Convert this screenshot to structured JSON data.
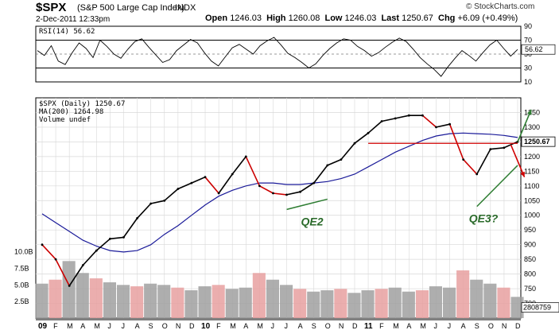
{
  "header": {
    "symbol": "$SPX",
    "description": "(S&P 500 Large Cap Index)",
    "exchange": "INDX",
    "datetime": "2-Dec-2011 12:33pm",
    "credit": "© StockCharts.com",
    "quote": {
      "open_label": "Open",
      "open": "1246.03",
      "high_label": "High",
      "high": "1260.08",
      "low_label": "Low",
      "low": "1246.03",
      "last_label": "Last",
      "last": "1250.67",
      "chg_label": "Chg",
      "chg": "+6.09 (+0.49%)"
    }
  },
  "colors": {
    "price": "#000000",
    "price_down": "#cc0000",
    "ma": "#1a1a99",
    "resistance": "#d00000",
    "trend": "#2e7d32",
    "volume_up": "#a0a0a0",
    "volume_down": "#e8a0a0",
    "grid": "#d8d8d8",
    "overbought_band": "#000000"
  },
  "chart_data": [
    {
      "type": "line",
      "name": "rsi-panel",
      "title": "RSI(14) 56.62",
      "indicator": "RSI(14)",
      "current": 56.62,
      "current_label": "56.62",
      "ylim": [
        10,
        90
      ],
      "yticks": [
        90,
        70,
        50,
        30,
        10
      ],
      "ytick_labels": [
        "90",
        "70",
        "50",
        "30",
        "10"
      ],
      "reference_lines": [
        70,
        30
      ],
      "values": [
        55,
        48,
        62,
        40,
        35,
        52,
        66,
        58,
        45,
        70,
        61,
        50,
        44,
        57,
        68,
        72,
        60,
        49,
        38,
        42,
        55,
        63,
        71,
        66,
        52,
        40,
        33,
        46,
        59,
        64,
        57,
        50,
        62,
        69,
        74,
        63,
        51,
        45,
        38,
        30,
        36,
        48,
        58,
        66,
        72,
        70,
        61,
        55,
        47,
        52,
        60,
        67,
        73,
        68,
        57,
        45,
        36,
        28,
        18,
        32,
        44,
        55,
        48,
        40,
        52,
        63,
        70,
        58,
        47,
        56.62
      ]
    },
    {
      "type": "line",
      "name": "price-panel",
      "title": "$SPX (Daily) 1250.67",
      "legend": [
        "$SPX (Daily) 1250.67",
        "MA(200) 1264.98",
        "Volume undef"
      ],
      "ylim": [
        650,
        1400
      ],
      "yticks": [
        1350,
        1300,
        1250,
        1200,
        1150,
        1100,
        1050,
        1000,
        950,
        900,
        850,
        800,
        750,
        700
      ],
      "ytick_labels": [
        "1350",
        "1300",
        "1250",
        "1200",
        "1150",
        "1100",
        "1050",
        "1000",
        "950",
        "900",
        "850",
        "800",
        "750",
        "700"
      ],
      "last_label": "1250.67",
      "x": [
        "09",
        "F",
        "M",
        "A",
        "M",
        "J",
        "J",
        "A",
        "S",
        "O",
        "N",
        "D",
        "10",
        "F",
        "M",
        "A",
        "M",
        "J",
        "J",
        "A",
        "S",
        "O",
        "N",
        "D",
        "11",
        "F",
        "M",
        "A",
        "M",
        "J",
        "J",
        "A",
        "S",
        "O",
        "N",
        "D"
      ],
      "series": [
        {
          "name": "$SPX",
          "values": [
            900,
            850,
            760,
            830,
            880,
            920,
            925,
            990,
            1040,
            1050,
            1090,
            1110,
            1130,
            1075,
            1140,
            1200,
            1100,
            1075,
            1070,
            1080,
            1110,
            1170,
            1190,
            1245,
            1280,
            1320,
            1330,
            1340,
            1340,
            1300,
            1310,
            1190,
            1140,
            1225,
            1230,
            1250.67
          ]
        },
        {
          "name": "MA(200)",
          "values": [
            1005,
            975,
            945,
            915,
            895,
            880,
            875,
            880,
            900,
            935,
            965,
            1000,
            1035,
            1065,
            1085,
            1100,
            1110,
            1110,
            1105,
            1105,
            1110,
            1115,
            1125,
            1140,
            1165,
            1190,
            1215,
            1235,
            1255,
            1270,
            1278,
            1280,
            1278,
            1276,
            1272,
            1264.98
          ]
        }
      ],
      "annotations": [
        {
          "label": "QE2",
          "type": "trend-line",
          "start": [
            18,
            1020
          ],
          "end": [
            21,
            1055
          ]
        },
        {
          "label": "QE3?",
          "type": "trend-line",
          "start": [
            32,
            1030
          ],
          "end": [
            35,
            1170
          ]
        },
        {
          "label": "",
          "type": "resistance-line",
          "start": [
            24,
            1245
          ],
          "end": [
            35,
            1245
          ]
        },
        {
          "label": "",
          "type": "arrow-up",
          "start": [
            35,
            1250
          ],
          "end": [
            36,
            1360
          ]
        },
        {
          "label": "",
          "type": "arrow-down",
          "start": [
            34.5,
            1240
          ],
          "end": [
            35.5,
            1130
          ]
        }
      ]
    },
    {
      "type": "bar",
      "name": "volume-panel",
      "yticks": [
        10.0,
        7.5,
        5.0,
        2.5
      ],
      "ytick_labels": [
        "10.0B",
        "7.5B",
        "5.0B",
        "2.5B"
      ],
      "ylim": [
        0,
        12
      ],
      "last_label": "2808759",
      "values": [
        5.2,
        5.8,
        8.6,
        6.8,
        6.0,
        5.4,
        5.0,
        4.8,
        5.2,
        5.0,
        4.6,
        4.2,
        4.8,
        5.0,
        4.4,
        4.6,
        6.8,
        5.8,
        5.0,
        4.4,
        4.0,
        4.2,
        4.4,
        3.8,
        4.2,
        4.4,
        4.6,
        4.0,
        4.2,
        4.8,
        4.6,
        7.2,
        5.8,
        5.2,
        4.6,
        3.2
      ]
    }
  ]
}
